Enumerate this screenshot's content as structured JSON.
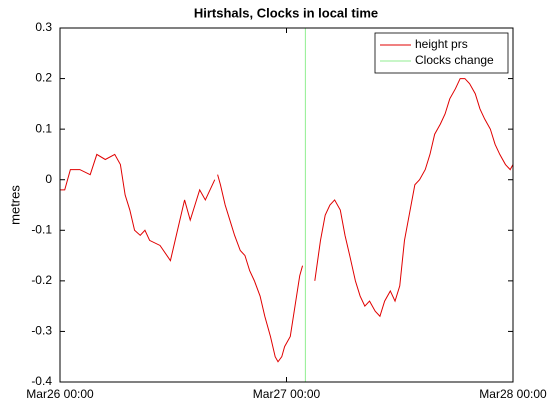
{
  "chart_data": {
    "type": "line",
    "title": "Hirtshals, Clocks in local time",
    "ylabel": "metres",
    "x": [
      0,
      0.5,
      1.1,
      2.1,
      3.2,
      3.9,
      4.8,
      5.8,
      6.4,
      6.9,
      7.4,
      7.9,
      8.5,
      9.0,
      9.5,
      10.6,
      11.7,
      12.2,
      12.7,
      13.2,
      13.8,
      14.3,
      14.8,
      15.4,
      15.9,
      16.4,
      16.6,
      16.7,
      17.0,
      17.5,
      18.0,
      18.5,
      19.1,
      19.6,
      20.1,
      20.6,
      21.2,
      21.7,
      22.3,
      22.8,
      23.1,
      23.5,
      23.8,
      24.4,
      24.9,
      25.4,
      25.7,
      26.5,
      27.0,
      27.6,
      28.1,
      28.6,
      29.1,
      29.7,
      30.2,
      30.7,
      31.3,
      31.8,
      32.3,
      32.8,
      33.4,
      33.9,
      34.4,
      35.0,
      35.5,
      36.0,
      36.5,
      37.1,
      37.6,
      38.1,
      38.7,
      39.2,
      39.7,
      40.3,
      40.8,
      41.3,
      41.9,
      42.4,
      42.9,
      43.4,
      44.0,
      44.5,
      45.0,
      45.6,
      46.1,
      46.6,
      47.2,
      47.7,
      48.0
    ],
    "series": [
      {
        "name": "height prs",
        "color": "#e00000",
        "values": [
          -0.02,
          -0.02,
          0.02,
          0.02,
          0.01,
          0.05,
          0.04,
          0.05,
          0.03,
          -0.03,
          -0.06,
          -0.1,
          -0.11,
          -0.1,
          -0.12,
          -0.13,
          -0.16,
          -0.12,
          -0.08,
          -0.04,
          -0.08,
          -0.05,
          -0.02,
          -0.04,
          -0.02,
          0.0,
          null,
          0.01,
          -0.01,
          -0.05,
          -0.08,
          -0.11,
          -0.14,
          -0.15,
          -0.18,
          -0.2,
          -0.23,
          -0.27,
          -0.31,
          -0.35,
          -0.36,
          -0.35,
          -0.33,
          -0.31,
          -0.25,
          -0.19,
          -0.17,
          null,
          -0.2,
          -0.12,
          -0.07,
          -0.05,
          -0.04,
          -0.06,
          -0.11,
          -0.15,
          -0.2,
          -0.23,
          -0.25,
          -0.24,
          -0.26,
          -0.27,
          -0.24,
          -0.22,
          -0.24,
          -0.21,
          -0.12,
          -0.06,
          -0.01,
          0.0,
          0.02,
          0.05,
          0.09,
          0.11,
          0.13,
          0.16,
          0.18,
          0.2,
          0.2,
          0.19,
          0.17,
          0.14,
          0.12,
          0.1,
          0.07,
          0.05,
          0.03,
          0.02,
          0.03
        ]
      }
    ],
    "vline": {
      "name": "Clocks change",
      "color": "#90ee90",
      "x": 26
    },
    "xlim": [
      0,
      48
    ],
    "xticks": [
      {
        "value": 0,
        "label": "Mar26 00:00"
      },
      {
        "value": 24,
        "label": "Mar27 00:00"
      },
      {
        "value": 48,
        "label": "Mar28 00:00"
      }
    ],
    "ylim": [
      -0.4,
      0.3
    ],
    "yticks": [
      -0.4,
      -0.3,
      -0.2,
      -0.1,
      0,
      0.1,
      0.2,
      0.3
    ],
    "grid": false,
    "legend": "upper right"
  }
}
